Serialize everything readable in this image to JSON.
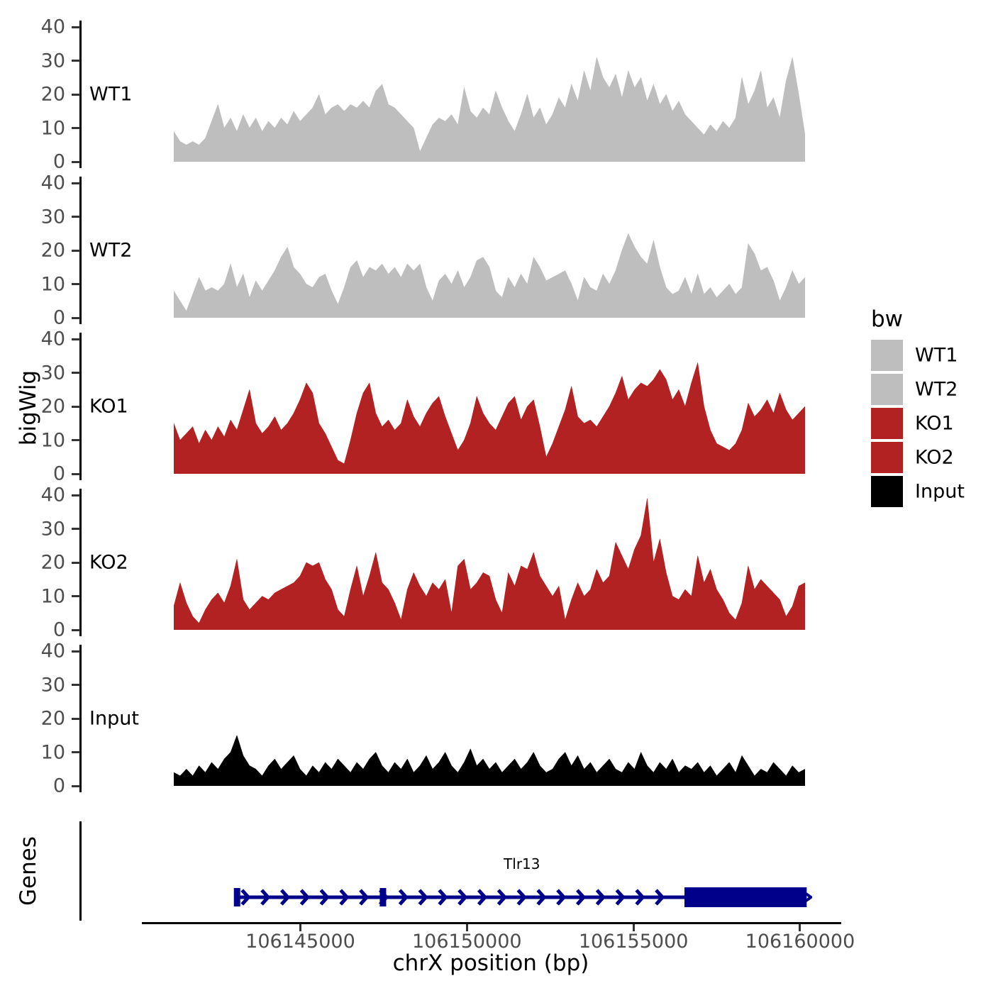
{
  "figure": {
    "y_axis_title": "bigWig",
    "x_axis_title": "chrX position (bp)"
  },
  "legend": {
    "title": "bw",
    "entries": [
      {
        "label": "WT1",
        "color": "#bebebe"
      },
      {
        "label": "WT2",
        "color": "#bebebe"
      },
      {
        "label": "KO1",
        "color": "#b22222"
      },
      {
        "label": "KO2",
        "color": "#b22222"
      },
      {
        "label": "Input",
        "color": "#000000"
      }
    ]
  },
  "chart_data": {
    "type": "area",
    "title": "",
    "xlabel": "chrX position (bp)",
    "ylabel": "bigWig",
    "facet_layout": "5 stacked coverage tracks sharing one x axis, plus a gene-model track",
    "x_range": [
      106141200,
      106160150
    ],
    "x_ticks": [
      106145000,
      106150000,
      106155000,
      106160000
    ],
    "x_tick_labels": [
      "106145000",
      "106150000",
      "106155000",
      "106160000"
    ],
    "y_ticks": [
      0,
      10,
      20,
      30,
      40
    ],
    "ylim": [
      0,
      40
    ],
    "grid": false,
    "legend_position": "right",
    "series": [
      {
        "name": "WT1",
        "color": "#bebebe",
        "values": [
          9,
          6,
          5,
          6,
          5,
          7,
          12,
          17,
          10,
          13,
          9,
          14,
          10,
          13,
          9,
          12,
          10,
          13,
          11,
          15,
          12,
          14,
          16,
          20,
          14,
          16,
          17,
          15,
          17,
          16,
          18,
          16,
          21,
          23,
          17,
          16,
          14,
          12,
          10,
          3,
          7,
          11,
          13,
          12,
          14,
          11,
          22,
          15,
          13,
          16,
          14,
          21,
          16,
          12,
          9,
          14,
          20,
          13,
          16,
          11,
          14,
          19,
          16,
          23,
          18,
          27,
          21,
          31,
          25,
          22,
          26,
          19,
          27,
          22,
          25,
          18,
          23,
          17,
          20,
          15,
          18,
          14,
          12,
          10,
          8,
          11,
          9,
          12,
          10,
          13,
          25,
          17,
          21,
          27,
          16,
          19,
          13,
          24,
          31,
          20,
          8
        ]
      },
      {
        "name": "WT2",
        "color": "#bebebe",
        "values": [
          8,
          5,
          2,
          7,
          12,
          8,
          9,
          8,
          10,
          16,
          9,
          13,
          6,
          11,
          8,
          11,
          14,
          18,
          21,
          15,
          13,
          10,
          9,
          12,
          13,
          8,
          4,
          9,
          15,
          17,
          12,
          15,
          14,
          16,
          13,
          15,
          12,
          16,
          14,
          16,
          9,
          5,
          11,
          13,
          10,
          14,
          9,
          12,
          17,
          18,
          15,
          8,
          6,
          12,
          9,
          13,
          10,
          18,
          15,
          11,
          12,
          13,
          14,
          10,
          5,
          12,
          9,
          8,
          13,
          10,
          14,
          20,
          25,
          21,
          18,
          16,
          23,
          15,
          9,
          7,
          8,
          12,
          7,
          13,
          7,
          9,
          6,
          8,
          10,
          7,
          9,
          22,
          19,
          14,
          15,
          11,
          5,
          9,
          14,
          10,
          12
        ]
      },
      {
        "name": "KO1",
        "color": "#b22222",
        "values": [
          15,
          10,
          12,
          14,
          9,
          13,
          10,
          14,
          11,
          16,
          13,
          19,
          25,
          15,
          12,
          14,
          17,
          13,
          15,
          18,
          22,
          27,
          24,
          15,
          12,
          8,
          4,
          3,
          10,
          18,
          24,
          27,
          18,
          14,
          16,
          13,
          15,
          22,
          17,
          14,
          18,
          21,
          23,
          17,
          12,
          7,
          10,
          15,
          23,
          18,
          15,
          13,
          17,
          21,
          23,
          16,
          20,
          22,
          14,
          5,
          9,
          14,
          19,
          26,
          17,
          15,
          16,
          14,
          17,
          20,
          24,
          29,
          22,
          25,
          27,
          26,
          28,
          31,
          28,
          22,
          25,
          20,
          27,
          33,
          20,
          13,
          9,
          8,
          7,
          9,
          13,
          21,
          17,
          19,
          22,
          18,
          24,
          19,
          16,
          18,
          20
        ]
      },
      {
        "name": "KO2",
        "color": "#b22222",
        "values": [
          7,
          14,
          8,
          4,
          2,
          6,
          9,
          11,
          8,
          13,
          21,
          9,
          6,
          8,
          10,
          9,
          11,
          12,
          13,
          14,
          16,
          20,
          19,
          20,
          15,
          12,
          6,
          4,
          12,
          19,
          10,
          16,
          23,
          14,
          12,
          8,
          3,
          12,
          17,
          13,
          10,
          14,
          12,
          15,
          5,
          19,
          21,
          12,
          14,
          17,
          16,
          9,
          5,
          17,
          13,
          19,
          18,
          23,
          16,
          13,
          10,
          13,
          3,
          9,
          14,
          10,
          12,
          18,
          14,
          16,
          26,
          22,
          18,
          24,
          28,
          39,
          20,
          27,
          17,
          10,
          9,
          12,
          10,
          22,
          14,
          18,
          12,
          9,
          5,
          3,
          8,
          19,
          12,
          15,
          13,
          11,
          9,
          4,
          7,
          13,
          14
        ]
      },
      {
        "name": "Input",
        "color": "#000000",
        "values": [
          4,
          3,
          5,
          3,
          6,
          4,
          7,
          5,
          8,
          10,
          15,
          9,
          6,
          5,
          3,
          6,
          8,
          5,
          7,
          9,
          5,
          3,
          6,
          4,
          7,
          5,
          8,
          6,
          4,
          7,
          5,
          8,
          10,
          6,
          4,
          7,
          5,
          8,
          4,
          6,
          9,
          5,
          7,
          10,
          6,
          4,
          7,
          11,
          6,
          8,
          5,
          7,
          4,
          6,
          8,
          5,
          7,
          10,
          6,
          4,
          5,
          8,
          10,
          6,
          9,
          5,
          7,
          4,
          6,
          8,
          5,
          4,
          7,
          5,
          10,
          6,
          4,
          7,
          5,
          8,
          4,
          6,
          5,
          7,
          4,
          6,
          3,
          5,
          7,
          4,
          9,
          6,
          3,
          5,
          4,
          7,
          5,
          3,
          6,
          4,
          5
        ]
      }
    ],
    "gene_track": {
      "panel_label": "Genes",
      "gene": {
        "name": "Tlr13",
        "strand": "+",
        "color": "#00008b",
        "tx_start": 106143100,
        "tx_end": 106160200,
        "exon_marks": [
          106143100,
          106147480
        ],
        "thick_exon_start": 106156530,
        "thick_exon_end": 106160200
      }
    }
  }
}
